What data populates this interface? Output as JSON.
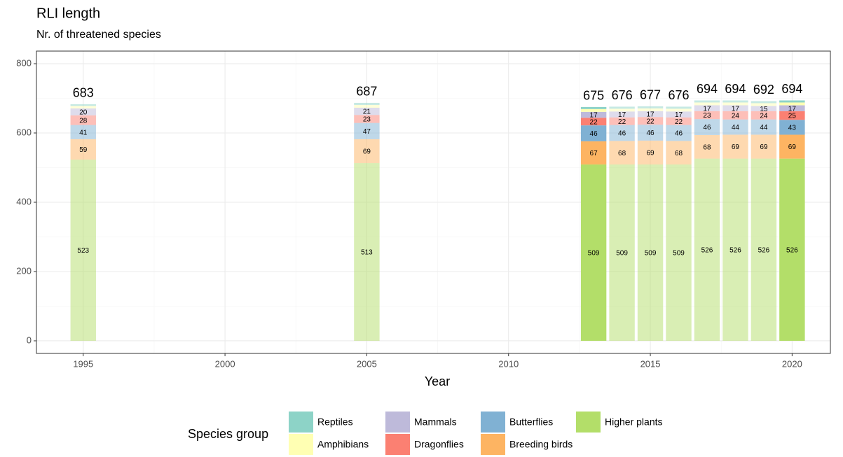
{
  "chart_data": {
    "type": "bar",
    "stacked": true,
    "title": "RLI length",
    "subtitle": "Nr. of threatened species",
    "x_label": "Year",
    "legend_title": "Species group",
    "legend_position": "bottom",
    "x": [
      1995,
      2005,
      2013,
      2014,
      2015,
      2016,
      2017,
      2018,
      2019,
      2020
    ],
    "highlight_x": [
      2013,
      2020
    ],
    "series": [
      {
        "name": "Reptiles",
        "color": "#8dd3c7",
        "show_labels": false,
        "values": [
          5,
          6,
          6,
          6,
          6,
          6,
          6,
          6,
          6,
          6
        ]
      },
      {
        "name": "Amphibians",
        "color": "#ffffb3",
        "show_labels": false,
        "values": [
          7,
          8,
          8,
          8,
          8,
          8,
          8,
          8,
          8,
          8
        ]
      },
      {
        "name": "Mammals",
        "color": "#bebada",
        "show_labels": true,
        "values": [
          20,
          21,
          17,
          17,
          17,
          17,
          17,
          17,
          15,
          17
        ]
      },
      {
        "name": "Dragonflies",
        "color": "#fb8072",
        "show_labels": true,
        "values": [
          28,
          23,
          22,
          22,
          22,
          22,
          23,
          24,
          24,
          25
        ]
      },
      {
        "name": "Butterflies",
        "color": "#80b1d3",
        "show_labels": true,
        "values": [
          41,
          47,
          46,
          46,
          46,
          46,
          46,
          44,
          44,
          43
        ]
      },
      {
        "name": "Breeding birds",
        "color": "#fdb462",
        "show_labels": true,
        "values": [
          59,
          69,
          67,
          68,
          69,
          68,
          68,
          69,
          69,
          69
        ]
      },
      {
        "name": "Higher plants",
        "color": "#b3de69",
        "show_labels": true,
        "values": [
          523,
          513,
          509,
          509,
          509,
          509,
          526,
          526,
          526,
          526
        ]
      }
    ],
    "totals": [
      683,
      687,
      675,
      676,
      677,
      676,
      694,
      694,
      692,
      694
    ],
    "xlim": [
      1993.35,
      2021.35
    ],
    "ylim": [
      -36.4,
      836.4
    ],
    "xticks": [
      1995,
      2000,
      2005,
      2010,
      2015,
      2020
    ],
    "yticks": [
      0,
      200,
      400,
      600,
      800
    ],
    "xminor_ticks": [
      1997.5,
      2002.5,
      2007.5,
      2012.5,
      2017.5
    ],
    "yminor_ticks": [
      100,
      300,
      500,
      700
    ],
    "grid": true
  }
}
